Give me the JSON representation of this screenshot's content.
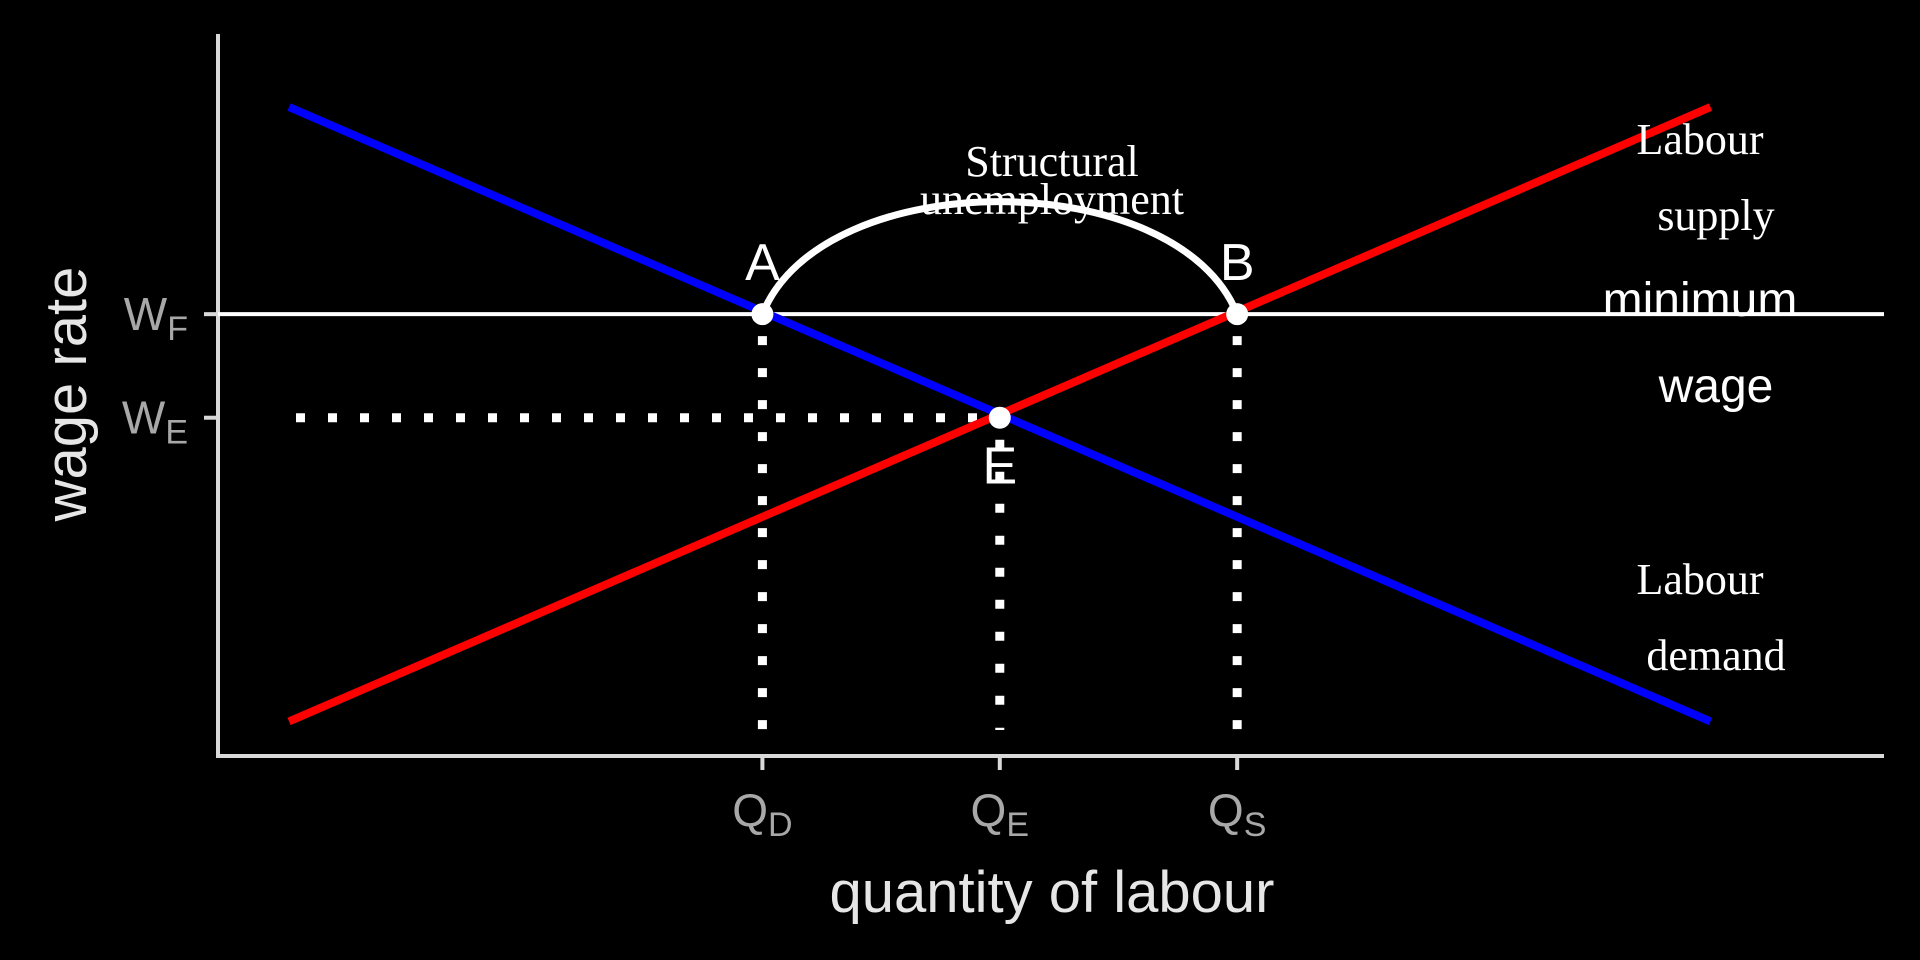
{
  "chart_data": {
    "type": "line",
    "xlabel": "quantity of labour",
    "ylabel": "wage rate",
    "xlim": [
      0,
      10
    ],
    "ylim": [
      0,
      10
    ],
    "colors": {
      "background": "#000000",
      "axis": "#d9d9d9",
      "tick_text": "#a8a8a8",
      "labour_demand": "#0000ff",
      "labour_supply": "#ff0000",
      "minimum_wage": "#ffffff",
      "guides": "#ffffff"
    },
    "series": [
      {
        "key": "demand",
        "x": [
          0.5,
          10.5
        ],
        "y": [
          9.4,
          0.5
        ]
      },
      {
        "key": "supply",
        "x": [
          0.5,
          10.5
        ],
        "y": [
          0.5,
          9.4
        ]
      }
    ],
    "minimum_wage_y": 6.4,
    "equilibrium": {
      "x": 5.5,
      "y": 4.9
    },
    "x_ticks": [
      {
        "main": "Q",
        "sub": "D",
        "x": 3.83
      },
      {
        "main": "Q",
        "sub": "E",
        "x": 5.5
      },
      {
        "main": "Q",
        "sub": "S",
        "x": 7.17
      }
    ],
    "y_ticks": [
      {
        "main": "W",
        "sub": "F",
        "y": 6.4
      },
      {
        "main": "W",
        "sub": "E",
        "y": 4.9
      }
    ],
    "points": [
      {
        "label": "A",
        "x": 3.83,
        "y": 6.4
      },
      {
        "label": "E",
        "x": 5.5,
        "y": 4.9
      },
      {
        "label": "B",
        "x": 7.17,
        "y": 6.4
      }
    ],
    "annotations": {
      "structural_line1": "Structural",
      "structural_line2": "unemployment",
      "supply_line1": "Labour",
      "supply_line2": "supply",
      "minwage_line1": "minimum",
      "minwage_line2": "wage",
      "demand_line1": "Labour",
      "demand_line2": "demand"
    }
  }
}
